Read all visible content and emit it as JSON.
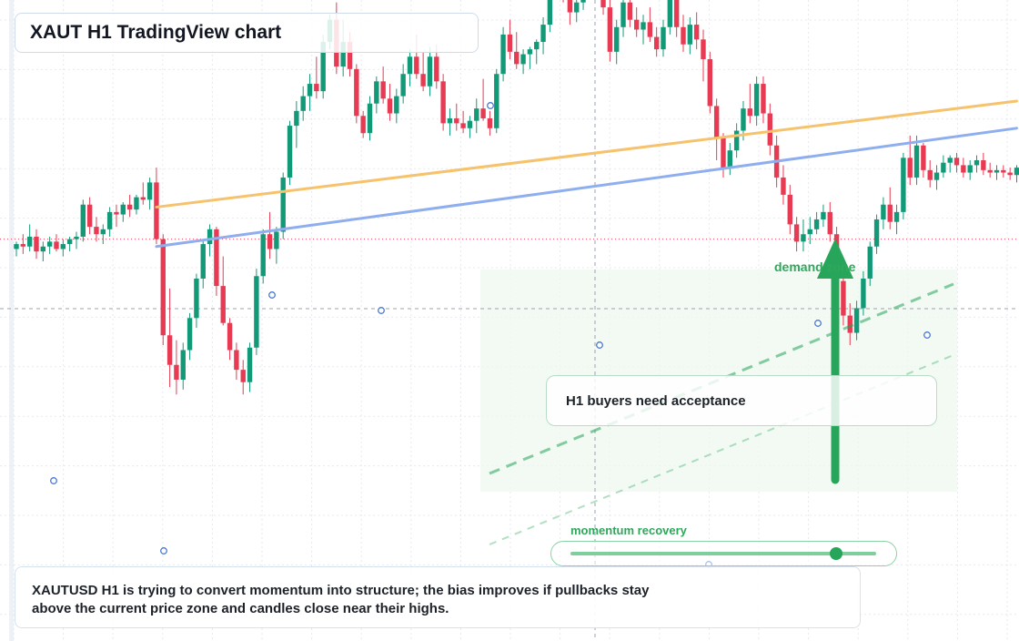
{
  "header": {
    "title": "XAUT H1 TradingView chart"
  },
  "annotations": {
    "callout": "H1 buyers need acceptance",
    "zone_label": "demand zone",
    "momentum_label": "momentum recovery",
    "momentum_level": 0.87,
    "summary": "XAUTUSD H1 is trying to convert momentum into structure; the bias improves if pullbacks stay above the current price zone and candles close near their highs."
  },
  "colors": {
    "up": "#129a78",
    "down": "#e83a52",
    "orange_line": "#f6c26b",
    "blue_line": "#8eaef0",
    "green": "#27a55a",
    "zone": "#eef8ef"
  },
  "chart_data": {
    "type": "candlestick",
    "symbol": "XAUTUSD",
    "timeframe": "H1",
    "title": "XAUT H1 TradingView chart",
    "ylim": [
      4360,
      4620
    ],
    "grid": true,
    "current_price": 4523,
    "candles": [
      [
        4519,
        4522,
        4516,
        4521
      ],
      [
        4521,
        4525,
        4517,
        4520
      ],
      [
        4520,
        4529,
        4518,
        4524
      ],
      [
        4524,
        4527,
        4515,
        4518
      ],
      [
        4518,
        4522,
        4514,
        4520
      ],
      [
        4520,
        4524,
        4517,
        4522
      ],
      [
        4522,
        4525,
        4518,
        4519
      ],
      [
        4519,
        4523,
        4516,
        4521
      ],
      [
        4521,
        4524,
        4518,
        4523
      ],
      [
        4523,
        4526,
        4519,
        4524
      ],
      [
        4524,
        4539,
        4522,
        4537
      ],
      [
        4537,
        4540,
        4525,
        4528
      ],
      [
        4528,
        4532,
        4522,
        4525
      ],
      [
        4525,
        4529,
        4521,
        4527
      ],
      [
        4527,
        4536,
        4524,
        4534
      ],
      [
        4534,
        4537,
        4528,
        4533
      ],
      [
        4533,
        4538,
        4530,
        4537
      ],
      [
        4537,
        4541,
        4532,
        4535
      ],
      [
        4535,
        4541,
        4533,
        4540
      ],
      [
        4540,
        4546,
        4537,
        4539
      ],
      [
        4539,
        4548,
        4535,
        4546
      ],
      [
        4546,
        4552,
        4521,
        4523
      ],
      [
        4523,
        4525,
        4480,
        4484
      ],
      [
        4484,
        4503,
        4463,
        4472
      ],
      [
        4472,
        4482,
        4460,
        4466
      ],
      [
        4466,
        4481,
        4462,
        4478
      ],
      [
        4478,
        4493,
        4474,
        4491
      ],
      [
        4491,
        4509,
        4487,
        4507
      ],
      [
        4507,
        4523,
        4503,
        4521
      ],
      [
        4521,
        4529,
        4516,
        4527
      ],
      [
        4527,
        4528,
        4500,
        4504
      ],
      [
        4504,
        4516,
        4488,
        4489
      ],
      [
        4489,
        4491,
        4474,
        4478
      ],
      [
        4478,
        4481,
        4466,
        4470
      ],
      [
        4470,
        4474,
        4460,
        4465
      ],
      [
        4465,
        4481,
        4461,
        4479
      ],
      [
        4479,
        4511,
        4476,
        4508
      ],
      [
        4508,
        4527,
        4505,
        4525
      ],
      [
        4525,
        4534,
        4515,
        4519
      ],
      [
        4519,
        4528,
        4513,
        4526
      ],
      [
        4526,
        4550,
        4523,
        4548
      ],
      [
        4548,
        4571,
        4545,
        4569
      ],
      [
        4569,
        4579,
        4560,
        4575
      ],
      [
        4575,
        4585,
        4571,
        4581
      ],
      [
        4581,
        4590,
        4575,
        4586
      ],
      [
        4586,
        4597,
        4580,
        4583
      ],
      [
        4583,
        4606,
        4580,
        4603
      ],
      [
        4603,
        4614,
        4600,
        4612
      ],
      [
        4612,
        4619,
        4590,
        4593
      ],
      [
        4593,
        4612,
        4589,
        4603
      ],
      [
        4603,
        4607,
        4589,
        4592
      ],
      [
        4592,
        4594,
        4570,
        4573
      ],
      [
        4573,
        4575,
        4564,
        4566
      ],
      [
        4566,
        4581,
        4563,
        4578
      ],
      [
        4578,
        4589,
        4574,
        4587
      ],
      [
        4587,
        4593,
        4578,
        4580
      ],
      [
        4580,
        4586,
        4571,
        4574
      ],
      [
        4574,
        4584,
        4570,
        4581
      ],
      [
        4581,
        4594,
        4578,
        4590
      ],
      [
        4590,
        4600,
        4585,
        4597
      ],
      [
        4597,
        4606,
        4588,
        4590
      ],
      [
        4590,
        4599,
        4583,
        4585
      ],
      [
        4585,
        4601,
        4581,
        4597
      ],
      [
        4597,
        4602,
        4584,
        4587
      ],
      [
        4587,
        4590,
        4567,
        4570
      ],
      [
        4570,
        4576,
        4565,
        4572
      ],
      [
        4572,
        4578,
        4567,
        4570
      ],
      [
        4570,
        4575,
        4566,
        4568
      ],
      [
        4568,
        4573,
        4564,
        4571
      ],
      [
        4571,
        4580,
        4566,
        4576
      ],
      [
        4576,
        4588,
        4571,
        4572
      ],
      [
        4572,
        4575,
        4565,
        4568
      ],
      [
        4568,
        4592,
        4566,
        4590
      ],
      [
        4590,
        4609,
        4587,
        4606
      ],
      [
        4606,
        4612,
        4596,
        4599
      ],
      [
        4599,
        4607,
        4592,
        4594
      ],
      [
        4594,
        4600,
        4590,
        4598
      ],
      [
        4598,
        4601,
        4592,
        4600
      ],
      [
        4600,
        4604,
        4594,
        4603
      ],
      [
        4603,
        4613,
        4598,
        4610
      ],
      [
        4610,
        4628,
        4607,
        4625
      ],
      [
        4625,
        4640,
        4622,
        4637
      ],
      [
        4637,
        4638,
        4619,
        4621
      ],
      [
        4621,
        4625,
        4610,
        4615
      ],
      [
        4615,
        4622,
        4611,
        4619
      ],
      [
        4619,
        4629,
        4616,
        4627
      ],
      [
        4627,
        4635,
        4623,
        4632
      ],
      [
        4632,
        4636,
        4621,
        4624
      ],
      [
        4624,
        4630,
        4614,
        4617
      ],
      [
        4617,
        4622,
        4595,
        4599
      ],
      [
        4599,
        4612,
        4594,
        4609
      ],
      [
        4609,
        4622,
        4605,
        4619
      ],
      [
        4619,
        4623,
        4609,
        4612
      ],
      [
        4612,
        4617,
        4605,
        4608
      ],
      [
        4608,
        4614,
        4602,
        4611
      ],
      [
        4611,
        4617,
        4603,
        4605
      ],
      [
        4605,
        4609,
        4597,
        4600
      ],
      [
        4600,
        4612,
        4597,
        4609
      ],
      [
        4609,
        4647,
        4606,
        4629
      ],
      [
        4629,
        4636,
        4605,
        4609
      ],
      [
        4609,
        4614,
        4599,
        4602
      ],
      [
        4602,
        4613,
        4598,
        4610
      ],
      [
        4610,
        4615,
        4600,
        4604
      ],
      [
        4604,
        4608,
        4587,
        4596
      ],
      [
        4596,
        4599,
        4574,
        4577
      ],
      [
        4577,
        4580,
        4555,
        4564
      ],
      [
        4564,
        4566,
        4548,
        4552
      ],
      [
        4552,
        4562,
        4549,
        4559
      ],
      [
        4559,
        4570,
        4556,
        4567
      ],
      [
        4567,
        4579,
        4563,
        4576
      ],
      [
        4576,
        4586,
        4570,
        4573
      ],
      [
        4573,
        4589,
        4569,
        4586
      ],
      [
        4586,
        4589,
        4570,
        4574
      ],
      [
        4574,
        4578,
        4557,
        4561
      ],
      [
        4561,
        4565,
        4544,
        4548
      ],
      [
        4548,
        4553,
        4537,
        4541
      ],
      [
        4541,
        4545,
        4525,
        4529
      ],
      [
        4529,
        4532,
        4518,
        4522
      ],
      [
        4522,
        4531,
        4518,
        4525
      ],
      [
        4525,
        4532,
        4521,
        4527
      ],
      [
        4527,
        4534,
        4525,
        4531
      ],
      [
        4531,
        4537,
        4528,
        4534
      ],
      [
        4534,
        4538,
        4522,
        4525
      ],
      [
        4525,
        4528,
        4502,
        4506
      ],
      [
        4506,
        4510,
        4488,
        4492
      ],
      [
        4492,
        4497,
        4480,
        4485
      ],
      [
        4485,
        4498,
        4482,
        4495
      ],
      [
        4495,
        4510,
        4492,
        4507
      ],
      [
        4507,
        4522,
        4504,
        4520
      ],
      [
        4520,
        4533,
        4517,
        4531
      ],
      [
        4531,
        4540,
        4527,
        4537
      ],
      [
        4537,
        4544,
        4527,
        4530
      ],
      [
        4530,
        4537,
        4525,
        4534
      ],
      [
        4534,
        4558,
        4531,
        4556
      ],
      [
        4556,
        4565,
        4545,
        4548
      ],
      [
        4548,
        4565,
        4545,
        4561
      ],
      [
        4561,
        4562,
        4548,
        4551
      ],
      [
        4551,
        4555,
        4544,
        4547
      ],
      [
        4547,
        4553,
        4543,
        4550
      ],
      [
        4550,
        4557,
        4548,
        4554
      ],
      [
        4554,
        4557,
        4550,
        4556
      ],
      [
        4556,
        4558,
        4550,
        4553
      ],
      [
        4553,
        4556,
        4548,
        4550
      ],
      [
        4550,
        4555,
        4547,
        4553
      ],
      [
        4553,
        4557,
        4550,
        4555
      ],
      [
        4555,
        4558,
        4549,
        4551
      ],
      [
        4551,
        4554,
        4548,
        4550
      ],
      [
        4550,
        4553,
        4547,
        4551
      ],
      [
        4551,
        4553,
        4548,
        4550
      ],
      [
        4550,
        4552,
        4547,
        4549
      ],
      [
        4549,
        4553,
        4546,
        4552
      ],
      [
        4552,
        4554,
        4548,
        4550
      ],
      [
        4550,
        4553,
        4547,
        4552
      ],
      [
        4552,
        4554,
        4549,
        4551
      ],
      [
        4551,
        4554,
        4548,
        4553
      ],
      [
        4553,
        4555,
        4550,
        4552
      ],
      [
        4552,
        4558,
        4550,
        4556
      ],
      [
        4556,
        4558,
        4552,
        4554
      ],
      [
        4554,
        4557,
        4551,
        4553
      ],
      [
        4553,
        4555,
        4550,
        4551
      ],
      [
        4551,
        4553,
        4548,
        4550
      ],
      [
        4550,
        4552,
        4548,
        4549
      ],
      [
        4549,
        4561,
        4548,
        4559
      ]
    ],
    "trendlines": [
      {
        "color": "orange",
        "from": [
          21,
          4536
        ],
        "to": [
          150,
          4579
        ]
      },
      {
        "color": "blue",
        "from": [
          21,
          4520
        ],
        "to": [
          150,
          4568
        ]
      }
    ]
  }
}
